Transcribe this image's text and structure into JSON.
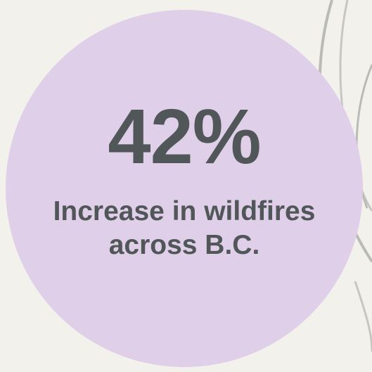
{
  "colors": {
    "background": "#f2f1ec",
    "circle_fill": "#dfcfe9",
    "text": "#515659",
    "decor_lines": "#b9bbb7"
  },
  "decoration": {
    "icon": "curved-lines-icon"
  },
  "stat": {
    "value": "42%",
    "caption_line1": "Increase in wildfires",
    "caption_line2": "across B.C."
  }
}
